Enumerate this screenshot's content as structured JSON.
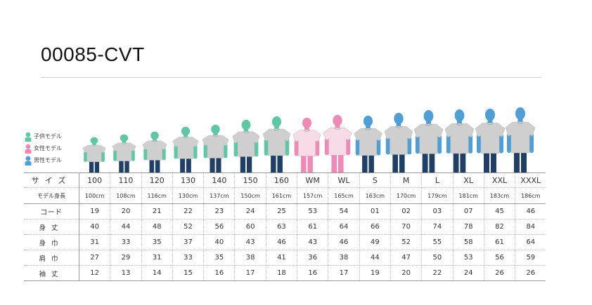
{
  "title": "00085-CVT",
  "legend": [
    {
      "label": "子供モデル",
      "color": "#5fc7a6",
      "icon": "kid-figure-icon"
    },
    {
      "label": "女性モデル",
      "color": "#ef8ab6",
      "icon": "woman-figure-icon"
    },
    {
      "label": "男性モデル",
      "color": "#4f9fd6",
      "icon": "man-figure-icon"
    }
  ],
  "colors": {
    "kid": "#5fc7a6",
    "woman": "#ef8ab6",
    "man": "#4f9fd6",
    "shirt": "#cfcfcf",
    "woman_shirt": "#f7dbe6"
  },
  "rows": {
    "size_label": "サイズ",
    "height_label": "モデル身長",
    "code_label": "コード",
    "length_label": "身丈",
    "width_label": "身巾",
    "shoulder_label": "肩巾",
    "sleeve_label": "袖丈"
  },
  "columns": [
    {
      "size": "100",
      "group": "kid",
      "height": "100cm",
      "code": "19",
      "length": "40",
      "width": "31",
      "shoulder": "27",
      "sleeve": "12"
    },
    {
      "size": "110",
      "group": "kid",
      "height": "108cm",
      "code": "20",
      "length": "44",
      "width": "33",
      "shoulder": "29",
      "sleeve": "13"
    },
    {
      "size": "120",
      "group": "kid",
      "height": "116cm",
      "code": "21",
      "length": "48",
      "width": "35",
      "shoulder": "31",
      "sleeve": "14"
    },
    {
      "size": "130",
      "group": "kid",
      "height": "130cm",
      "code": "22",
      "length": "52",
      "width": "37",
      "shoulder": "33",
      "sleeve": "15"
    },
    {
      "size": "140",
      "group": "kid",
      "height": "137cm",
      "code": "23",
      "length": "56",
      "width": "40",
      "shoulder": "35",
      "sleeve": "16"
    },
    {
      "size": "150",
      "group": "kid",
      "height": "150cm",
      "code": "24",
      "length": "60",
      "width": "43",
      "shoulder": "38",
      "sleeve": "17"
    },
    {
      "size": "160",
      "group": "kid",
      "height": "161cm",
      "code": "25",
      "length": "63",
      "width": "46",
      "shoulder": "41",
      "sleeve": "18"
    },
    {
      "size": "WM",
      "group": "woman",
      "height": "157cm",
      "code": "53",
      "length": "61",
      "width": "43",
      "shoulder": "36",
      "sleeve": "16"
    },
    {
      "size": "WL",
      "group": "woman",
      "height": "165cm",
      "code": "54",
      "length": "64",
      "width": "46",
      "shoulder": "38",
      "sleeve": "17"
    },
    {
      "size": "S",
      "group": "man",
      "height": "163cm",
      "code": "01",
      "length": "66",
      "width": "49",
      "shoulder": "44",
      "sleeve": "19"
    },
    {
      "size": "M",
      "group": "man",
      "height": "170cm",
      "code": "02",
      "length": "70",
      "width": "52",
      "shoulder": "47",
      "sleeve": "20"
    },
    {
      "size": "L",
      "group": "man",
      "height": "179cm",
      "code": "03",
      "length": "74",
      "width": "55",
      "shoulder": "50",
      "sleeve": "22"
    },
    {
      "size": "XL",
      "group": "man",
      "height": "181cm",
      "code": "07",
      "length": "78",
      "width": "58",
      "shoulder": "53",
      "sleeve": "24"
    },
    {
      "size": "XXL",
      "group": "man",
      "height": "183cm",
      "code": "45",
      "length": "82",
      "width": "61",
      "shoulder": "56",
      "sleeve": "26"
    },
    {
      "size": "XXXL",
      "group": "man",
      "height": "186cm",
      "code": "46",
      "length": "84",
      "width": "64",
      "shoulder": "59",
      "sleeve": "26"
    }
  ]
}
